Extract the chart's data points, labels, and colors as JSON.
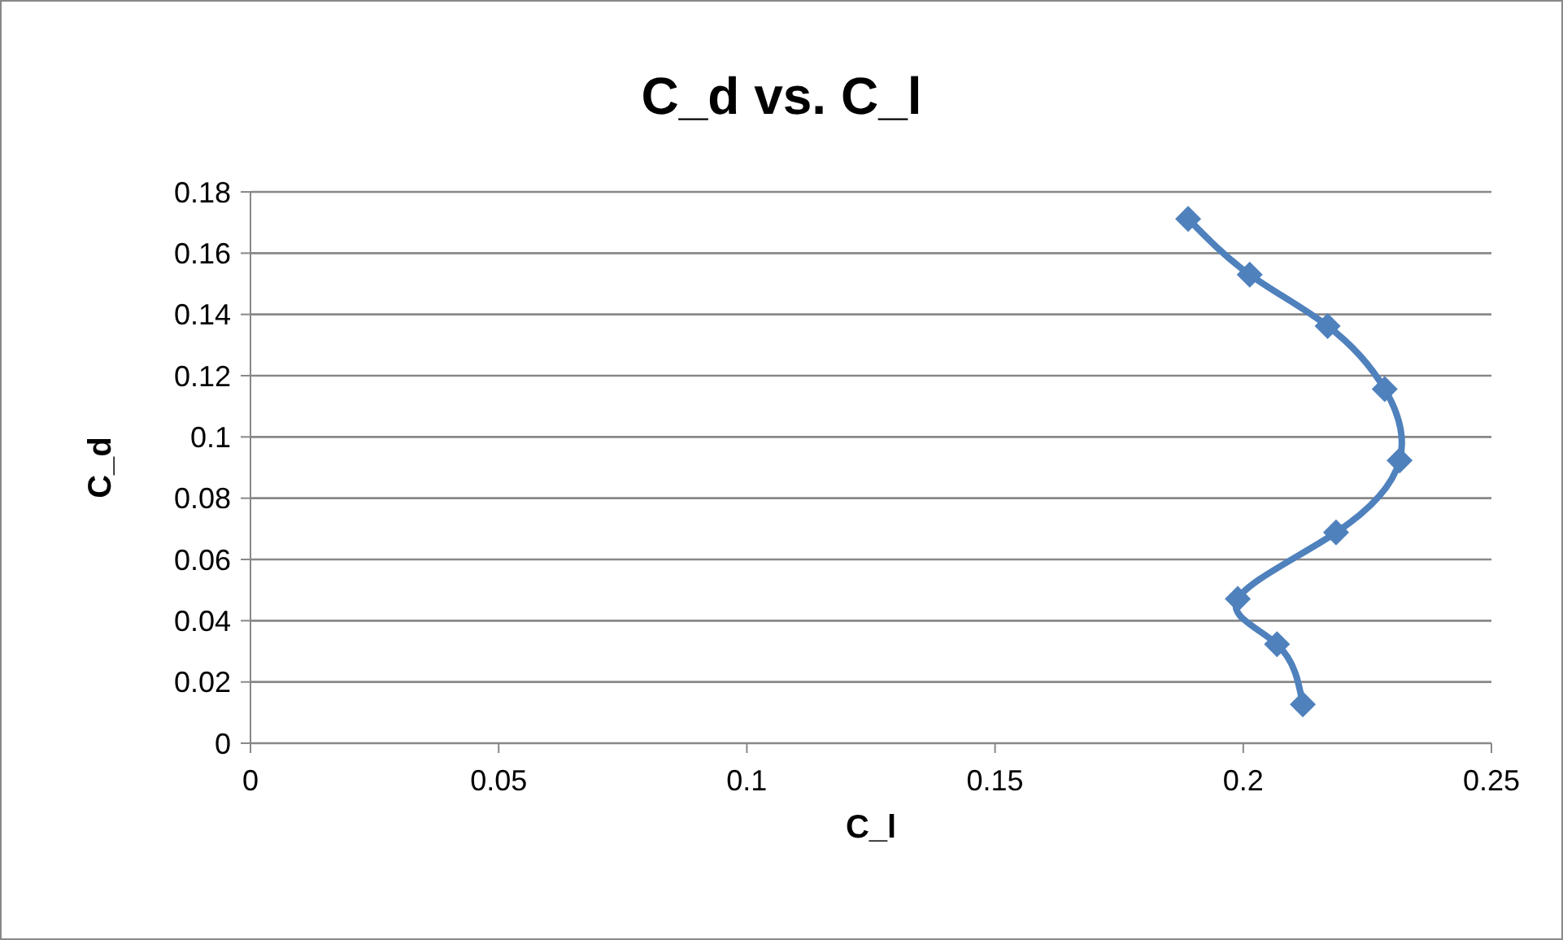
{
  "chart_data": {
    "type": "line",
    "title": "C_d vs. C_l",
    "xlabel": "C_l",
    "ylabel": "C_d",
    "x": [
      0.1889,
      0.2013,
      0.217,
      0.2285,
      0.2315,
      0.2187,
      0.1989,
      0.2068,
      0.212
    ],
    "series": [
      {
        "color": "#4f81bd",
        "values": [
          0.1712,
          0.153,
          0.1362,
          0.1156,
          0.0923,
          0.0688,
          0.0471,
          0.0323,
          0.0127
        ]
      }
    ],
    "xlim": [
      0,
      0.25
    ],
    "xticks": [
      0,
      0.05,
      0.1,
      0.15,
      0.2,
      0.25
    ],
    "ylim": [
      0,
      0.18
    ],
    "yticks": [
      0,
      0.02,
      0.04,
      0.06,
      0.08,
      0.1,
      0.12,
      0.14,
      0.16,
      0.18
    ],
    "grid": "y",
    "marker": "diamond",
    "line_style": "solid"
  }
}
